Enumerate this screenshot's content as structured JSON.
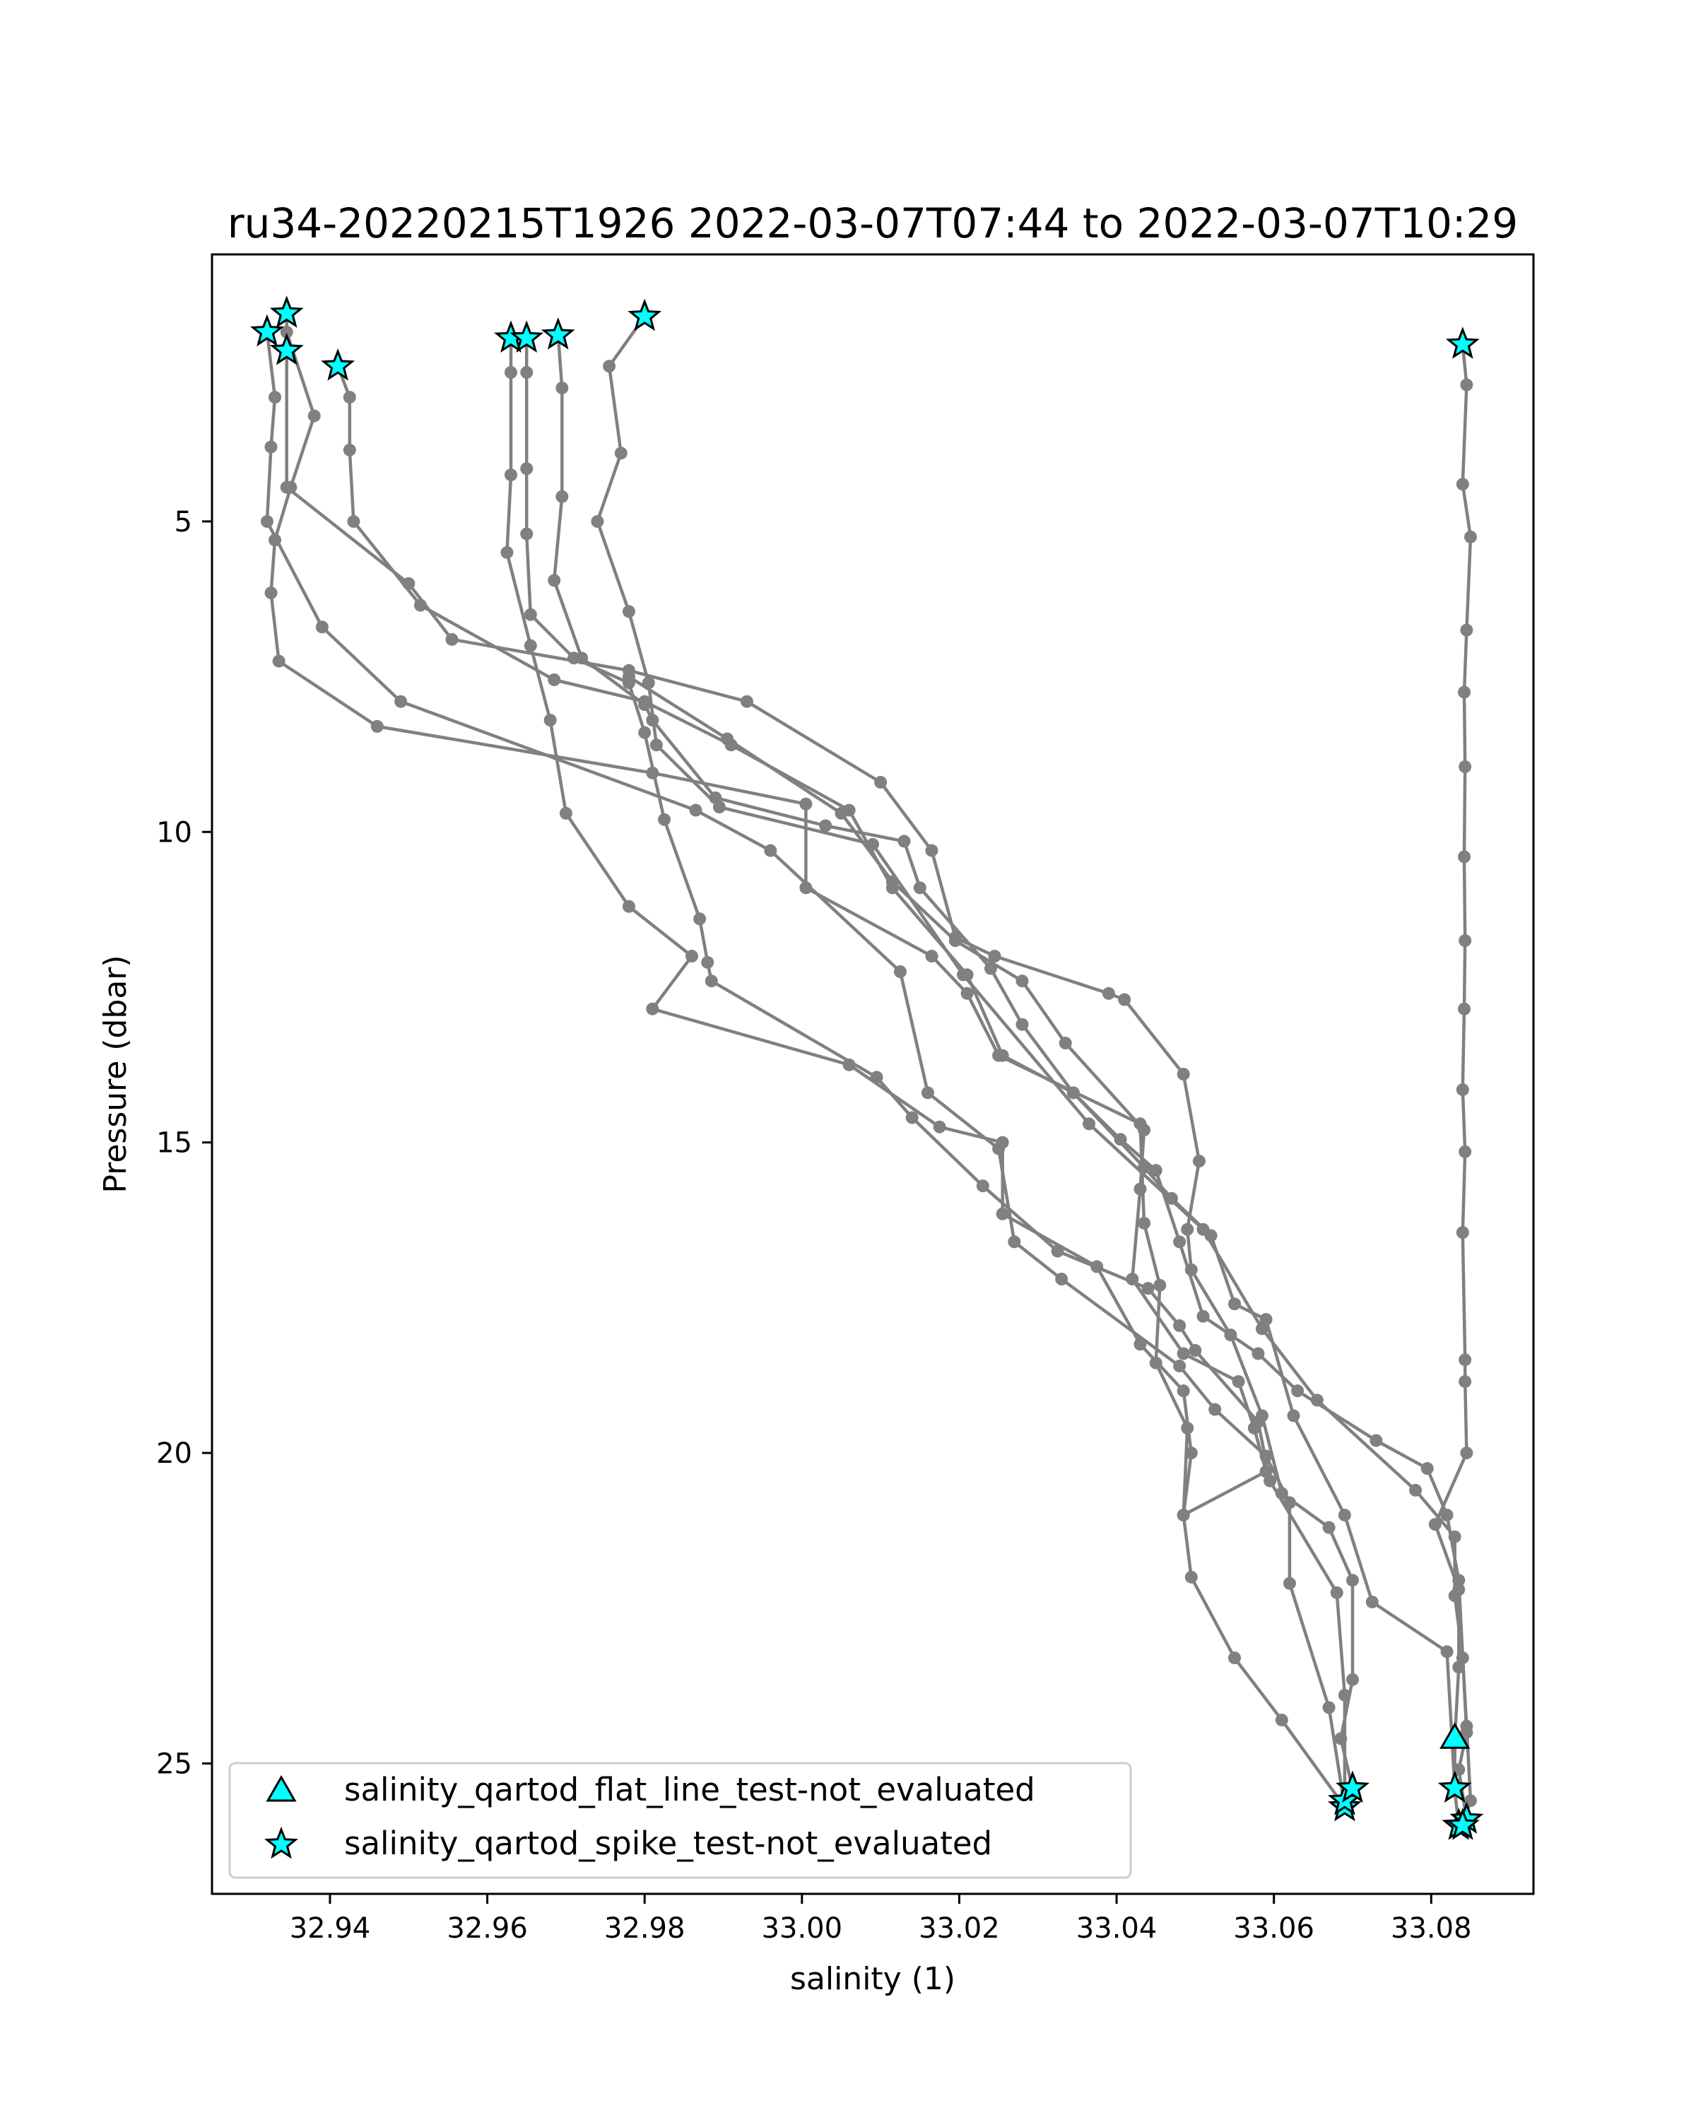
{
  "chart_data": {
    "type": "line",
    "title": "ru34-20220215T1926 2022-03-07T07:44 to 2022-03-07T10:29",
    "xlabel": "salinity (1)",
    "ylabel": "Pressure (dbar)",
    "xlim": [
      32.925,
      33.093
    ],
    "ylim": [
      27.1,
      0.7
    ],
    "y_inverted": true,
    "xticks": [
      32.94,
      32.96,
      32.98,
      33.0,
      33.02,
      33.04,
      33.06,
      33.08
    ],
    "xtick_labels": [
      "32.94",
      "32.96",
      "32.98",
      "33.00",
      "33.02",
      "33.04",
      "33.06",
      "33.08"
    ],
    "yticks": [
      5,
      10,
      15,
      20,
      25
    ],
    "ytick_labels": [
      "5",
      "10",
      "15",
      "20",
      "25"
    ],
    "grid": false,
    "legend_position": "lower-left",
    "colors": {
      "line": "#808080",
      "marker_fill": "#00ffff",
      "marker_edge": "#000000"
    },
    "series": [
      {
        "values": [
          [
            32.9345,
            1.95
          ],
          [
            32.938,
            3.3
          ],
          [
            32.935,
            4.45
          ],
          [
            32.933,
            5.3
          ],
          [
            32.9325,
            6.15
          ],
          [
            32.9335,
            7.25
          ],
          [
            32.946,
            8.3
          ],
          [
            32.981,
            9.05
          ],
          [
            33.0005,
            9.55
          ],
          [
            33.0005,
            10.9
          ],
          [
            33.0165,
            12.0
          ],
          [
            33.021,
            12.6
          ],
          [
            33.025,
            13.6
          ],
          [
            33.043,
            14.7
          ],
          [
            33.0435,
            16.3
          ],
          [
            33.0455,
            17.3
          ],
          [
            33.045,
            18.55
          ],
          [
            33.049,
            19.6
          ],
          [
            33.0485,
            21.0
          ],
          [
            33.0495,
            22.0
          ],
          [
            33.055,
            23.3
          ],
          [
            33.061,
            24.3
          ],
          [
            33.069,
            25.7
          ]
        ]
      },
      {
        "values": [
          [
            32.932,
            1.95
          ],
          [
            32.933,
            3.0
          ],
          [
            32.9325,
            3.8
          ],
          [
            32.932,
            5.0
          ],
          [
            32.939,
            6.7
          ],
          [
            32.949,
            7.9
          ],
          [
            32.9865,
            9.65
          ],
          [
            32.996,
            10.3
          ],
          [
            33.0125,
            12.25
          ],
          [
            33.016,
            14.2
          ],
          [
            33.025,
            15.1
          ],
          [
            33.027,
            16.6
          ],
          [
            33.033,
            17.2
          ],
          [
            33.048,
            18.6
          ],
          [
            33.0525,
            19.3
          ],
          [
            33.059,
            20.05
          ],
          [
            33.062,
            20.8
          ],
          [
            33.062,
            22.1
          ],
          [
            33.067,
            24.1
          ],
          [
            33.069,
            25.7
          ]
        ]
      },
      {
        "values": [
          [
            32.9345,
            1.65
          ],
          [
            32.9345,
            2.25
          ],
          [
            32.9345,
            4.45
          ],
          [
            32.95,
            6.0
          ],
          [
            32.9555,
            6.9
          ],
          [
            32.978,
            7.4
          ],
          [
            32.993,
            7.9
          ],
          [
            33.01,
            9.2
          ],
          [
            33.0165,
            10.3
          ],
          [
            33.0195,
            11.7
          ],
          [
            33.0245,
            12.0
          ],
          [
            33.039,
            12.6
          ],
          [
            33.041,
            12.7
          ],
          [
            33.0485,
            13.9
          ],
          [
            33.0505,
            15.3
          ],
          [
            33.049,
            16.4
          ],
          [
            33.0495,
            17.05
          ],
          [
            33.0545,
            18.1
          ],
          [
            33.0585,
            19.4
          ],
          [
            33.061,
            20.65
          ],
          [
            33.067,
            21.2
          ],
          [
            33.07,
            22.05
          ],
          [
            33.07,
            23.65
          ],
          [
            33.0685,
            24.6
          ],
          [
            33.07,
            25.4
          ]
        ]
      },
      {
        "values": [
          [
            32.941,
            2.5
          ],
          [
            32.9425,
            3.0
          ],
          [
            32.9425,
            3.85
          ],
          [
            32.943,
            5.0
          ],
          [
            32.9515,
            6.35
          ],
          [
            32.9685,
            7.55
          ],
          [
            32.98,
            7.9
          ],
          [
            32.991,
            8.6
          ],
          [
            33.006,
            9.65
          ],
          [
            33.0115,
            10.9
          ],
          [
            33.021,
            12.3
          ],
          [
            33.0255,
            13.6
          ],
          [
            33.0345,
            14.2
          ],
          [
            33.0435,
            15.4
          ],
          [
            33.047,
            15.9
          ],
          [
            33.052,
            16.5
          ],
          [
            33.055,
            17.6
          ],
          [
            33.059,
            17.85
          ],
          [
            33.0625,
            19.4
          ],
          [
            33.069,
            21.0
          ],
          [
            33.0725,
            22.4
          ],
          [
            33.082,
            23.2
          ],
          [
            33.083,
            25.4
          ]
        ]
      },
      {
        "values": [
          [
            32.963,
            2.05
          ],
          [
            32.963,
            2.6
          ],
          [
            32.963,
            4.25
          ],
          [
            32.9625,
            5.5
          ],
          [
            32.9655,
            7.0
          ],
          [
            32.968,
            8.2
          ],
          [
            32.97,
            9.7
          ],
          [
            32.978,
            11.2
          ],
          [
            32.986,
            12.0
          ],
          [
            32.981,
            12.85
          ],
          [
            33.006,
            13.75
          ],
          [
            33.0175,
            14.75
          ],
          [
            33.0255,
            15.0
          ],
          [
            33.0255,
            16.15
          ],
          [
            33.0375,
            17.0
          ],
          [
            33.043,
            18.25
          ],
          [
            33.0485,
            19.0
          ],
          [
            33.0495,
            20.0
          ],
          [
            33.0485,
            21.0
          ],
          [
            33.059,
            20.3
          ],
          [
            33.0575,
            19.6
          ],
          [
            33.0555,
            18.85
          ],
          [
            33.0485,
            18.4
          ],
          [
            33.042,
            17.2
          ],
          [
            33.043,
            15.75
          ],
          [
            33.0435,
            14.8
          ],
          [
            33.0335,
            13.4
          ],
          [
            33.028,
            12.4
          ],
          [
            33.0195,
            11.75
          ],
          [
            33.0115,
            10.8
          ],
          [
            33.005,
            9.7
          ],
          [
            32.9905,
            8.5
          ],
          [
            32.978,
            7.5
          ]
        ]
      },
      {
        "values": [
          [
            32.965,
            2.05
          ],
          [
            32.965,
            2.6
          ],
          [
            32.965,
            4.15
          ],
          [
            32.965,
            5.2
          ],
          [
            32.9655,
            6.5
          ],
          [
            32.971,
            7.2
          ],
          [
            32.978,
            7.6
          ],
          [
            32.98,
            8.4
          ],
          [
            32.9825,
            9.8
          ],
          [
            32.987,
            11.4
          ],
          [
            32.988,
            12.1
          ],
          [
            32.9885,
            12.4
          ],
          [
            33.0095,
            13.95
          ],
          [
            33.014,
            14.6
          ],
          [
            33.023,
            15.7
          ],
          [
            33.0325,
            16.75
          ],
          [
            33.044,
            17.35
          ],
          [
            33.048,
            17.95
          ],
          [
            33.05,
            18.35
          ],
          [
            33.058,
            19.5
          ],
          [
            33.0595,
            20.45
          ],
          [
            33.068,
            22.25
          ],
          [
            33.069,
            23.9
          ],
          [
            33.069,
            25.6
          ]
        ]
      },
      {
        "values": [
          [
            32.969,
            2.0
          ],
          [
            32.9695,
            2.85
          ],
          [
            32.9695,
            4.6
          ],
          [
            32.9685,
            5.95
          ],
          [
            32.972,
            7.2
          ],
          [
            32.98,
            7.95
          ],
          [
            32.981,
            8.2
          ],
          [
            32.989,
            9.45
          ],
          [
            33.003,
            9.9
          ],
          [
            33.013,
            10.15
          ],
          [
            33.015,
            10.9
          ],
          [
            33.024,
            12.2
          ],
          [
            33.028,
            13.1
          ],
          [
            33.0345,
            14.2
          ],
          [
            33.0405,
            14.95
          ],
          [
            33.045,
            15.45
          ],
          [
            33.048,
            16.6
          ],
          [
            33.051,
            17.8
          ],
          [
            33.058,
            18.4
          ],
          [
            33.063,
            19.0
          ],
          [
            33.073,
            19.8
          ],
          [
            33.0795,
            20.25
          ],
          [
            33.082,
            21.0
          ],
          [
            33.0835,
            22.05
          ],
          [
            33.0845,
            24.5
          ],
          [
            33.0835,
            25.1
          ],
          [
            33.0845,
            25.9
          ]
        ]
      },
      {
        "values": [
          [
            32.98,
            1.7
          ],
          [
            32.9755,
            2.5
          ],
          [
            32.977,
            3.9
          ],
          [
            32.974,
            5.0
          ],
          [
            32.978,
            6.45
          ],
          [
            32.9805,
            7.6
          ],
          [
            32.9815,
            8.6
          ],
          [
            32.9895,
            9.6
          ],
          [
            33.009,
            10.2
          ],
          [
            33.0205,
            12.3
          ],
          [
            33.0365,
            14.7
          ],
          [
            33.051,
            16.4
          ],
          [
            33.0585,
            18.0
          ],
          [
            33.0655,
            19.15
          ],
          [
            33.078,
            20.6
          ],
          [
            33.083,
            21.35
          ],
          [
            33.083,
            22.3
          ],
          [
            33.084,
            23.3
          ],
          [
            33.0845,
            24.4
          ],
          [
            33.085,
            25.6
          ],
          [
            33.084,
            26.0
          ]
        ]
      },
      {
        "values": [
          [
            33.084,
            2.15
          ],
          [
            33.0845,
            2.8
          ],
          [
            33.084,
            4.4
          ],
          [
            33.085,
            5.25
          ],
          [
            33.0845,
            6.75
          ],
          [
            33.0842,
            7.75
          ],
          [
            33.0843,
            8.95
          ],
          [
            33.0842,
            10.4
          ],
          [
            33.0843,
            11.75
          ],
          [
            33.0842,
            12.85
          ],
          [
            33.084,
            14.15
          ],
          [
            33.0843,
            15.15
          ],
          [
            33.084,
            16.45
          ],
          [
            33.0843,
            18.5
          ],
          [
            33.0843,
            18.85
          ],
          [
            33.0845,
            20.0
          ],
          [
            33.0805,
            21.15
          ],
          [
            33.0835,
            22.2
          ],
          [
            33.0835,
            23.45
          ],
          [
            33.083,
            24.6
          ],
          [
            33.083,
            25.45
          ],
          [
            33.0835,
            26.0
          ]
        ]
      }
    ],
    "flat_line_points": [
      [
        33.083,
        24.6
      ]
    ],
    "spike_points": [
      [
        32.932,
        1.95
      ],
      [
        32.9345,
        1.65
      ],
      [
        32.9345,
        2.25
      ],
      [
        32.941,
        2.5
      ],
      [
        32.963,
        2.05
      ],
      [
        32.965,
        2.05
      ],
      [
        32.969,
        2.0
      ],
      [
        32.98,
        1.7
      ],
      [
        33.084,
        2.15
      ],
      [
        33.069,
        25.7
      ],
      [
        33.069,
        25.6
      ],
      [
        33.07,
        25.4
      ],
      [
        33.083,
        25.4
      ],
      [
        33.0835,
        26.0
      ],
      [
        33.0845,
        25.9
      ],
      [
        33.084,
        26.0
      ]
    ],
    "legend": [
      {
        "marker": "triangle",
        "label": "salinity_qartod_flat_line_test-not_evaluated"
      },
      {
        "marker": "star",
        "label": "salinity_qartod_spike_test-not_evaluated"
      }
    ]
  }
}
